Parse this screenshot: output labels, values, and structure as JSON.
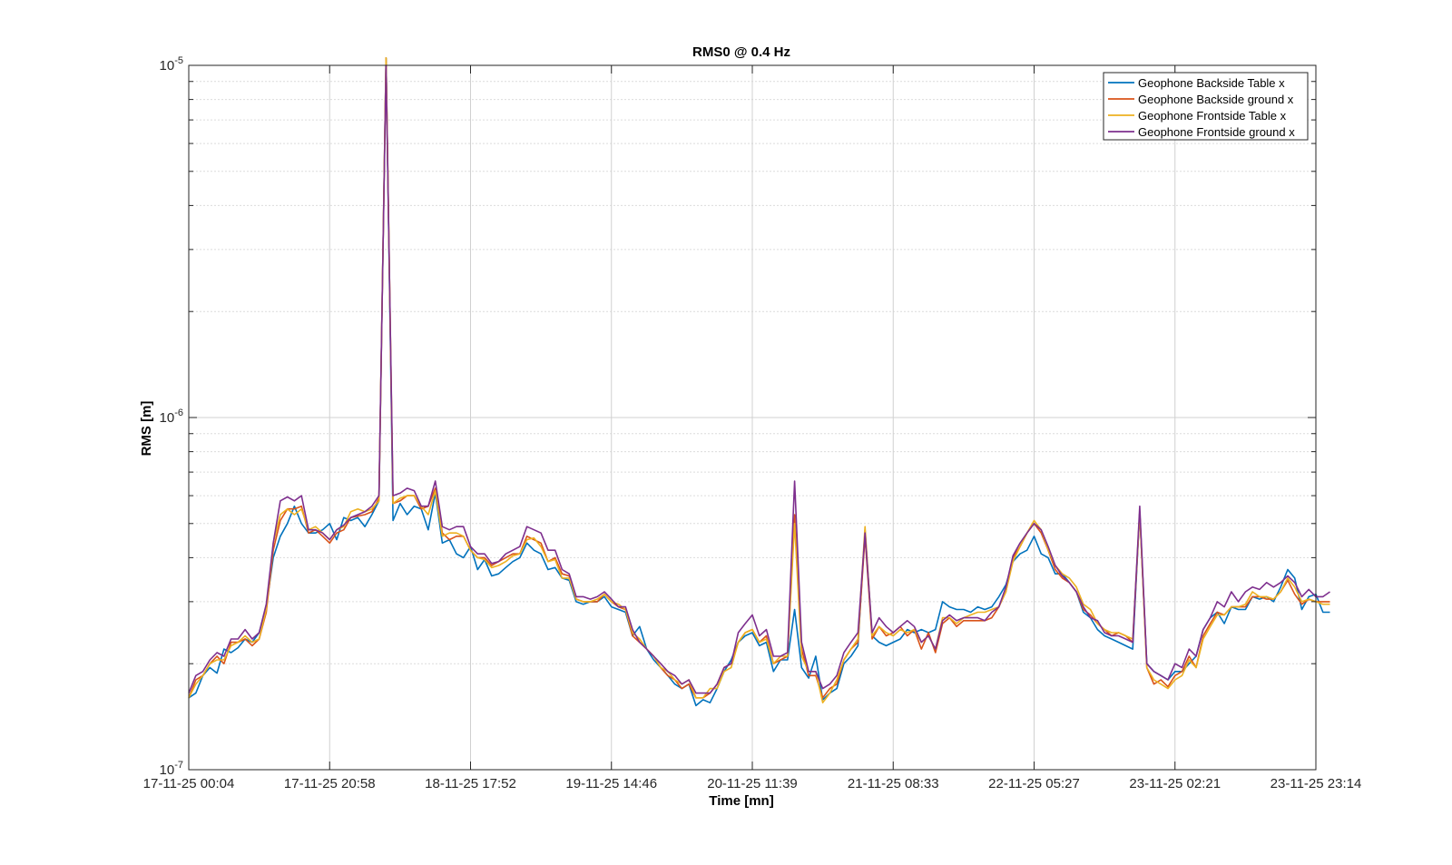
{
  "chart_data": {
    "type": "line",
    "title": "RMS0 @ 0.4 Hz",
    "xlabel": "Time [mn]",
    "ylabel": "RMS [m]",
    "yscale": "log",
    "ylim": [
      1e-07,
      1e-05
    ],
    "xlim": [
      "17-11-25 00:04",
      "23-11-25 23:14"
    ],
    "x_ticks": [
      "17-11-25 00:04",
      "17-11-25 20:58",
      "18-11-25 17:52",
      "19-11-25 14:46",
      "20-11-25 11:39",
      "21-11-25 08:33",
      "22-11-25 05:27",
      "23-11-25 02:21",
      "23-11-25 23:14"
    ],
    "y_ticks": [
      {
        "base": "10",
        "exp": "-7",
        "value": 1e-07
      },
      {
        "base": "10",
        "exp": "-6",
        "value": 1e-06
      },
      {
        "base": "10",
        "exp": "-5",
        "value": 1e-05
      }
    ],
    "grid": true,
    "legend_position": "top-right",
    "sample_count": 161,
    "series": [
      {
        "name": "Geophone Backside Table x",
        "color": "#0072BD",
        "values": [
          1.6e-07,
          1.65e-07,
          1.85e-07,
          1.95e-07,
          1.88e-07,
          2.2e-07,
          2.15e-07,
          2.22e-07,
          2.35e-07,
          2.3e-07,
          2.45e-07,
          2.9e-07,
          4e-07,
          4.6e-07,
          5e-07,
          5.6e-07,
          5e-07,
          4.7e-07,
          4.7e-07,
          4.8e-07,
          5e-07,
          4.5e-07,
          5.2e-07,
          5.1e-07,
          5.2e-07,
          4.9e-07,
          5.3e-07,
          5.8e-07,
          1.05e-05,
          5.1e-07,
          5.7e-07,
          5.3e-07,
          5.6e-07,
          5.5e-07,
          4.8e-07,
          6.1e-07,
          4.4e-07,
          4.5e-07,
          4.1e-07,
          4e-07,
          4.3e-07,
          3.7e-07,
          3.95e-07,
          3.55e-07,
          3.6e-07,
          3.75e-07,
          3.9e-07,
          4e-07,
          4.4e-07,
          4.2e-07,
          4.1e-07,
          3.7e-07,
          3.75e-07,
          3.5e-07,
          3.45e-07,
          3e-07,
          2.95e-07,
          3e-07,
          3e-07,
          3.1e-07,
          2.9e-07,
          2.85e-07,
          2.8e-07,
          2.4e-07,
          2.55e-07,
          2.2e-07,
          2.05e-07,
          1.95e-07,
          1.85e-07,
          1.75e-07,
          1.7e-07,
          1.75e-07,
          1.52e-07,
          1.58e-07,
          1.55e-07,
          1.7e-07,
          1.9e-07,
          2.05e-07,
          2.3e-07,
          2.4e-07,
          2.45e-07,
          2.25e-07,
          2.3e-07,
          1.9e-07,
          2.05e-07,
          2.05e-07,
          2.85e-07,
          1.95e-07,
          1.82e-07,
          2.1e-07,
          1.58e-07,
          1.65e-07,
          1.7e-07,
          2e-07,
          2.1e-07,
          2.25e-07,
          4.8e-07,
          2.4e-07,
          2.3e-07,
          2.25e-07,
          2.3e-07,
          2.35e-07,
          2.5e-07,
          2.45e-07,
          2.5e-07,
          2.45e-07,
          2.5e-07,
          3e-07,
          2.9e-07,
          2.85e-07,
          2.85e-07,
          2.8e-07,
          2.9e-07,
          2.85e-07,
          2.9e-07,
          3.1e-07,
          3.35e-07,
          3.9e-07,
          4.1e-07,
          4.2e-07,
          4.6e-07,
          4.1e-07,
          4e-07,
          3.6e-07,
          3.6e-07,
          3.4e-07,
          3.2e-07,
          2.8e-07,
          2.7e-07,
          2.5e-07,
          2.4e-07,
          2.35e-07,
          2.3e-07,
          2.25e-07,
          2.2e-07,
          5.4e-07,
          2e-07,
          1.9e-07,
          1.85e-07,
          1.8e-07,
          1.9e-07,
          1.9e-07,
          2e-07,
          2.1e-07,
          2.5e-07,
          2.7e-07,
          2.8e-07,
          2.6e-07,
          2.9e-07,
          2.85e-07,
          2.85e-07,
          3.1e-07,
          3.05e-07,
          3.1e-07,
          3e-07,
          3.3e-07,
          3.7e-07,
          3.5e-07,
          2.85e-07,
          3.1e-07,
          3.15e-07,
          2.8e-07,
          2.8e-07
        ]
      },
      {
        "name": "Geophone Backside ground x",
        "color": "#D95319",
        "values": [
          1.6e-07,
          1.8e-07,
          1.85e-07,
          2e-07,
          2.1e-07,
          2e-07,
          2.3e-07,
          2.3e-07,
          2.35e-07,
          2.25e-07,
          2.35e-07,
          2.8e-07,
          4.2e-07,
          5.1e-07,
          5.5e-07,
          5.5e-07,
          5.6e-07,
          4.7e-07,
          4.8e-07,
          4.6e-07,
          4.4e-07,
          4.7e-07,
          4.8e-07,
          5.2e-07,
          5.25e-07,
          5.3e-07,
          5.4e-07,
          5.9e-07,
          1.05e-05,
          5.7e-07,
          5.8e-07,
          6e-07,
          6e-07,
          5.5e-07,
          5.6e-07,
          6.3e-07,
          4.7e-07,
          4.5e-07,
          4.6e-07,
          4.6e-07,
          4.2e-07,
          4e-07,
          4e-07,
          3.8e-07,
          3.9e-07,
          4e-07,
          4.1e-07,
          4.1e-07,
          4.6e-07,
          4.5e-07,
          4.4e-07,
          3.9e-07,
          4e-07,
          3.6e-07,
          3.55e-07,
          3.05e-07,
          3e-07,
          3e-07,
          3e-07,
          3.15e-07,
          3e-07,
          2.9e-07,
          2.85e-07,
          2.4e-07,
          2.3e-07,
          2.2e-07,
          2.1e-07,
          1.95e-07,
          1.85e-07,
          1.8e-07,
          1.7e-07,
          1.75e-07,
          1.6e-07,
          1.6e-07,
          1.65e-07,
          1.75e-07,
          1.95e-07,
          2e-07,
          2.3e-07,
          2.45e-07,
          2.5e-07,
          2.3e-07,
          2.4e-07,
          2e-07,
          2.05e-07,
          2.1e-07,
          5.3e-07,
          2.2e-07,
          1.85e-07,
          1.85e-07,
          1.6e-07,
          1.7e-07,
          1.75e-07,
          2.05e-07,
          2.2e-07,
          2.3e-07,
          4.6e-07,
          2.35e-07,
          2.55e-07,
          2.4e-07,
          2.45e-07,
          2.55e-07,
          2.4e-07,
          2.5e-07,
          2.2e-07,
          2.45e-07,
          2.15e-07,
          2.6e-07,
          2.7e-07,
          2.55e-07,
          2.65e-07,
          2.65e-07,
          2.65e-07,
          2.65e-07,
          2.7e-07,
          2.9e-07,
          3.2e-07,
          4e-07,
          4.3e-07,
          4.7e-07,
          5e-07,
          4.7e-07,
          4.2e-07,
          3.7e-07,
          3.5e-07,
          3.4e-07,
          3.2e-07,
          2.85e-07,
          2.75e-07,
          2.6e-07,
          2.5e-07,
          2.4e-07,
          2.45e-07,
          2.4e-07,
          2.3e-07,
          5.4e-07,
          1.95e-07,
          1.75e-07,
          1.8e-07,
          1.72e-07,
          1.85e-07,
          1.9e-07,
          2.1e-07,
          1.95e-07,
          2.4e-07,
          2.6e-07,
          2.8e-07,
          2.75e-07,
          2.9e-07,
          2.9e-07,
          2.9e-07,
          3.1e-07,
          3.1e-07,
          3.05e-07,
          3.05e-07,
          3.2e-07,
          3.45e-07,
          3.15e-07,
          2.95e-07,
          3.05e-07,
          3e-07,
          3e-07,
          3e-07
        ]
      },
      {
        "name": "Geophone Frontside Table x",
        "color": "#EDB120",
        "values": [
          1.6e-07,
          1.75e-07,
          1.85e-07,
          2e-07,
          2.05e-07,
          2.05e-07,
          2.25e-07,
          2.3e-07,
          2.4e-07,
          2.3e-07,
          2.35e-07,
          2.85e-07,
          4.4e-07,
          5.3e-07,
          5.5e-07,
          5.3e-07,
          5.5e-07,
          4.8e-07,
          4.9e-07,
          4.7e-07,
          4.5e-07,
          4.8e-07,
          4.9e-07,
          5.4e-07,
          5.5e-07,
          5.4e-07,
          5.5e-07,
          5.8e-07,
          1.05e-05,
          5.7e-07,
          5.9e-07,
          6e-07,
          6e-07,
          5.6e-07,
          5.3e-07,
          6.2e-07,
          4.6e-07,
          4.7e-07,
          4.7e-07,
          4.6e-07,
          4.2e-07,
          4e-07,
          3.95e-07,
          3.75e-07,
          3.8e-07,
          3.9e-07,
          4.05e-07,
          4.1e-07,
          4.5e-07,
          4.55e-07,
          4.3e-07,
          3.9e-07,
          3.95e-07,
          3.5e-07,
          3.5e-07,
          3.05e-07,
          3e-07,
          3e-07,
          3.05e-07,
          3.15e-07,
          3e-07,
          2.95e-07,
          2.85e-07,
          2.45e-07,
          2.35e-07,
          2.2e-07,
          2.1e-07,
          1.95e-07,
          1.9e-07,
          1.8e-07,
          1.75e-07,
          1.8e-07,
          1.6e-07,
          1.6e-07,
          1.7e-07,
          1.7e-07,
          1.9e-07,
          1.95e-07,
          2.3e-07,
          2.45e-07,
          2.5e-07,
          2.3e-07,
          2.35e-07,
          2e-07,
          2.1e-07,
          2.1e-07,
          5e-07,
          2.1e-07,
          1.9e-07,
          1.9e-07,
          1.55e-07,
          1.65e-07,
          1.8e-07,
          2.05e-07,
          2.2e-07,
          2.35e-07,
          4.9e-07,
          2.4e-07,
          2.55e-07,
          2.45e-07,
          2.4e-07,
          2.5e-07,
          2.45e-07,
          2.5e-07,
          2.3e-07,
          2.4e-07,
          2.2e-07,
          2.7e-07,
          2.7e-07,
          2.6e-07,
          2.7e-07,
          2.75e-07,
          2.8e-07,
          2.8e-07,
          2.85e-07,
          2.9e-07,
          3.2e-07,
          3.9e-07,
          4.3e-07,
          4.7e-07,
          5.1e-07,
          4.8e-07,
          4.2e-07,
          3.8e-07,
          3.6e-07,
          3.5e-07,
          3.3e-07,
          2.95e-07,
          2.85e-07,
          2.6e-07,
          2.5e-07,
          2.45e-07,
          2.45e-07,
          2.4e-07,
          2.35e-07,
          5.4e-07,
          1.95e-07,
          1.8e-07,
          1.75e-07,
          1.7e-07,
          1.8e-07,
          1.85e-07,
          2.05e-07,
          1.95e-07,
          2.35e-07,
          2.55e-07,
          2.75e-07,
          2.75e-07,
          2.9e-07,
          2.9e-07,
          2.95e-07,
          3.2e-07,
          3.1e-07,
          3.1e-07,
          3.05e-07,
          3.2e-07,
          3.5e-07,
          3.3e-07,
          3e-07,
          3.05e-07,
          3e-07,
          2.95e-07,
          2.95e-07
        ]
      },
      {
        "name": "Geophone Frontside ground x",
        "color": "#7E2F8E",
        "values": [
          1.65e-07,
          1.85e-07,
          1.9e-07,
          2.05e-07,
          2.15e-07,
          2.1e-07,
          2.35e-07,
          2.35e-07,
          2.5e-07,
          2.35e-07,
          2.45e-07,
          2.95e-07,
          4.4e-07,
          5.8e-07,
          5.95e-07,
          5.8e-07,
          6e-07,
          4.8e-07,
          4.8e-07,
          4.7e-07,
          4.5e-07,
          4.8e-07,
          4.95e-07,
          5.2e-07,
          5.3e-07,
          5.4e-07,
          5.6e-07,
          6e-07,
          1e-05,
          6e-07,
          6.1e-07,
          6.3e-07,
          6.2e-07,
          5.6e-07,
          5.6e-07,
          6.6e-07,
          4.9e-07,
          4.8e-07,
          4.9e-07,
          4.9e-07,
          4.3e-07,
          4.1e-07,
          4.1e-07,
          3.85e-07,
          3.9e-07,
          4.1e-07,
          4.2e-07,
          4.3e-07,
          4.9e-07,
          4.8e-07,
          4.7e-07,
          4.2e-07,
          4.2e-07,
          3.7e-07,
          3.6e-07,
          3.1e-07,
          3.1e-07,
          3.05e-07,
          3.1e-07,
          3.2e-07,
          3.05e-07,
          2.9e-07,
          2.9e-07,
          2.5e-07,
          2.3e-07,
          2.2e-07,
          2.1e-07,
          2e-07,
          1.9e-07,
          1.85e-07,
          1.75e-07,
          1.8e-07,
          1.65e-07,
          1.65e-07,
          1.65e-07,
          1.75e-07,
          1.95e-07,
          2e-07,
          2.45e-07,
          2.6e-07,
          2.75e-07,
          2.4e-07,
          2.5e-07,
          2.1e-07,
          2.1e-07,
          2.15e-07,
          6.6e-07,
          2.3e-07,
          1.9e-07,
          1.9e-07,
          1.7e-07,
          1.75e-07,
          1.85e-07,
          2.15e-07,
          2.3e-07,
          2.45e-07,
          4.7e-07,
          2.45e-07,
          2.7e-07,
          2.55e-07,
          2.45e-07,
          2.55e-07,
          2.65e-07,
          2.55e-07,
          2.3e-07,
          2.4e-07,
          2.2e-07,
          2.65e-07,
          2.75e-07,
          2.65e-07,
          2.7e-07,
          2.7e-07,
          2.7e-07,
          2.65e-07,
          2.8e-07,
          2.9e-07,
          3.3e-07,
          4.05e-07,
          4.4e-07,
          4.7e-07,
          5e-07,
          4.8e-07,
          4.3e-07,
          3.8e-07,
          3.55e-07,
          3.4e-07,
          3.2e-07,
          2.9e-07,
          2.7e-07,
          2.65e-07,
          2.45e-07,
          2.4e-07,
          2.4e-07,
          2.35e-07,
          2.3e-07,
          5.6e-07,
          2e-07,
          1.9e-07,
          1.85e-07,
          1.8e-07,
          2e-07,
          1.95e-07,
          2.2e-07,
          2.1e-07,
          2.5e-07,
          2.7e-07,
          3e-07,
          2.9e-07,
          3.2e-07,
          3e-07,
          3.2e-07,
          3.3e-07,
          3.25e-07,
          3.4e-07,
          3.3e-07,
          3.4e-07,
          3.55e-07,
          3.4e-07,
          3.1e-07,
          3.25e-07,
          3.1e-07,
          3.1e-07,
          3.2e-07
        ]
      }
    ]
  }
}
